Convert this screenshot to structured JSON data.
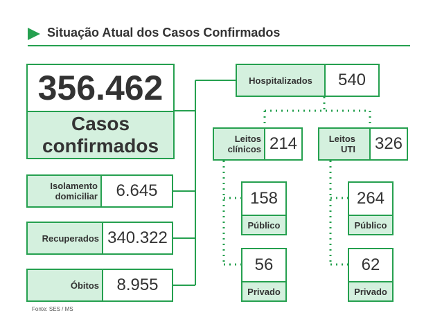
{
  "header": {
    "title": "Situação Atual dos Casos Confirmados"
  },
  "total": {
    "value": "356.462",
    "label": "Casos confirmados"
  },
  "status": [
    {
      "label": "Isolamento domiciliar",
      "value": "6.645"
    },
    {
      "label": "Recuperados",
      "value": "340.322"
    },
    {
      "label": "Óbitos",
      "value": "8.955"
    }
  ],
  "hospitalized": {
    "label": "Hospitalizados",
    "value": "540"
  },
  "beds": [
    {
      "label": "Leitos clínicos",
      "value": "214",
      "split": [
        {
          "value": "158",
          "label": "Público"
        },
        {
          "value": "56",
          "label": "Privado"
        }
      ]
    },
    {
      "label": "Leitos UTI",
      "value": "326",
      "split": [
        {
          "value": "264",
          "label": "Público"
        },
        {
          "value": "62",
          "label": "Privado"
        }
      ]
    }
  ],
  "source": "Fonte: SES / MS"
}
